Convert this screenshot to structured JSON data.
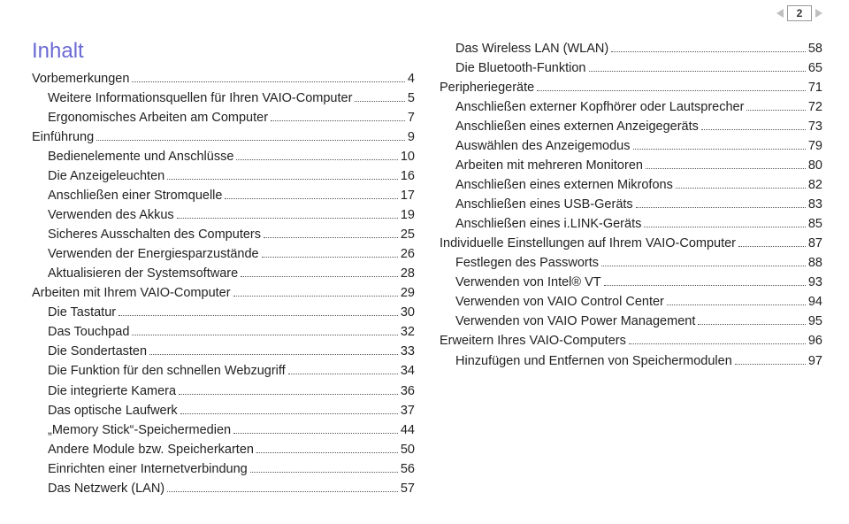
{
  "pageNumber": "2",
  "heading": "Inhalt",
  "headingColor": "#6a6ad4",
  "leftColumn": [
    {
      "label": "Vorbemerkungen",
      "page": "4",
      "level": "section"
    },
    {
      "label": "Weitere Informationsquellen für Ihren VAIO-Computer",
      "page": "5",
      "level": "sub"
    },
    {
      "label": "Ergonomisches Arbeiten am Computer",
      "page": "7",
      "level": "sub"
    },
    {
      "label": "Einführung",
      "page": "9",
      "level": "section"
    },
    {
      "label": "Bedienelemente und Anschlüsse",
      "page": "10",
      "level": "sub"
    },
    {
      "label": "Die Anzeigeleuchten",
      "page": "16",
      "level": "sub"
    },
    {
      "label": "Anschließen einer Stromquelle",
      "page": "17",
      "level": "sub"
    },
    {
      "label": "Verwenden des Akkus",
      "page": "19",
      "level": "sub"
    },
    {
      "label": "Sicheres Ausschalten des Computers",
      "page": "25",
      "level": "sub"
    },
    {
      "label": "Verwenden der Energiesparzustände",
      "page": "26",
      "level": "sub"
    },
    {
      "label": "Aktualisieren der Systemsoftware",
      "page": "28",
      "level": "sub"
    },
    {
      "label": "Arbeiten mit Ihrem VAIO-Computer",
      "page": "29",
      "level": "section"
    },
    {
      "label": "Die Tastatur",
      "page": "30",
      "level": "sub"
    },
    {
      "label": "Das Touchpad",
      "page": "32",
      "level": "sub"
    },
    {
      "label": "Die Sondertasten",
      "page": "33",
      "level": "sub"
    },
    {
      "label": "Die Funktion für den schnellen Webzugriff",
      "page": "34",
      "level": "sub"
    },
    {
      "label": "Die integrierte Kamera",
      "page": "36",
      "level": "sub"
    },
    {
      "label": "Das optische Laufwerk",
      "page": "37",
      "level": "sub"
    },
    {
      "label": "„Memory Stick“-Speichermedien",
      "page": "44",
      "level": "sub"
    },
    {
      "label": "Andere Module bzw. Speicherkarten",
      "page": "50",
      "level": "sub"
    },
    {
      "label": "Einrichten einer Internetverbindung",
      "page": "56",
      "level": "sub"
    },
    {
      "label": "Das Netzwerk (LAN)",
      "page": "57",
      "level": "sub"
    }
  ],
  "rightColumn": [
    {
      "label": "Das Wireless LAN (WLAN)",
      "page": "58",
      "level": "sub"
    },
    {
      "label": "Die Bluetooth-Funktion",
      "page": "65",
      "level": "sub"
    },
    {
      "label": "Peripheriegeräte",
      "page": "71",
      "level": "section"
    },
    {
      "label": "Anschließen externer Kopfhörer oder Lautsprecher",
      "page": "72",
      "level": "sub"
    },
    {
      "label": "Anschließen eines externen Anzeigegeräts",
      "page": "73",
      "level": "sub"
    },
    {
      "label": "Auswählen des Anzeigemodus",
      "page": "79",
      "level": "sub"
    },
    {
      "label": "Arbeiten mit mehreren Monitoren",
      "page": "80",
      "level": "sub"
    },
    {
      "label": "Anschließen eines externen Mikrofons",
      "page": "82",
      "level": "sub"
    },
    {
      "label": "Anschließen eines USB-Geräts",
      "page": "83",
      "level": "sub"
    },
    {
      "label": "Anschließen eines i.LINK-Geräts",
      "page": "85",
      "level": "sub"
    },
    {
      "label": "Individuelle Einstellungen auf Ihrem VAIO-Computer",
      "page": "87",
      "level": "section"
    },
    {
      "label": "Festlegen des Passworts",
      "page": "88",
      "level": "sub"
    },
    {
      "label": "Verwenden von Intel® VT",
      "page": "93",
      "level": "sub"
    },
    {
      "label": "Verwenden von VAIO Control Center",
      "page": "94",
      "level": "sub"
    },
    {
      "label": "Verwenden von VAIO Power Management",
      "page": "95",
      "level": "sub"
    },
    {
      "label": "Erweitern Ihres VAIO-Computers",
      "page": "96",
      "level": "section"
    },
    {
      "label": "Hinzufügen und Entfernen von Speichermodulen",
      "page": "97",
      "level": "sub"
    }
  ]
}
